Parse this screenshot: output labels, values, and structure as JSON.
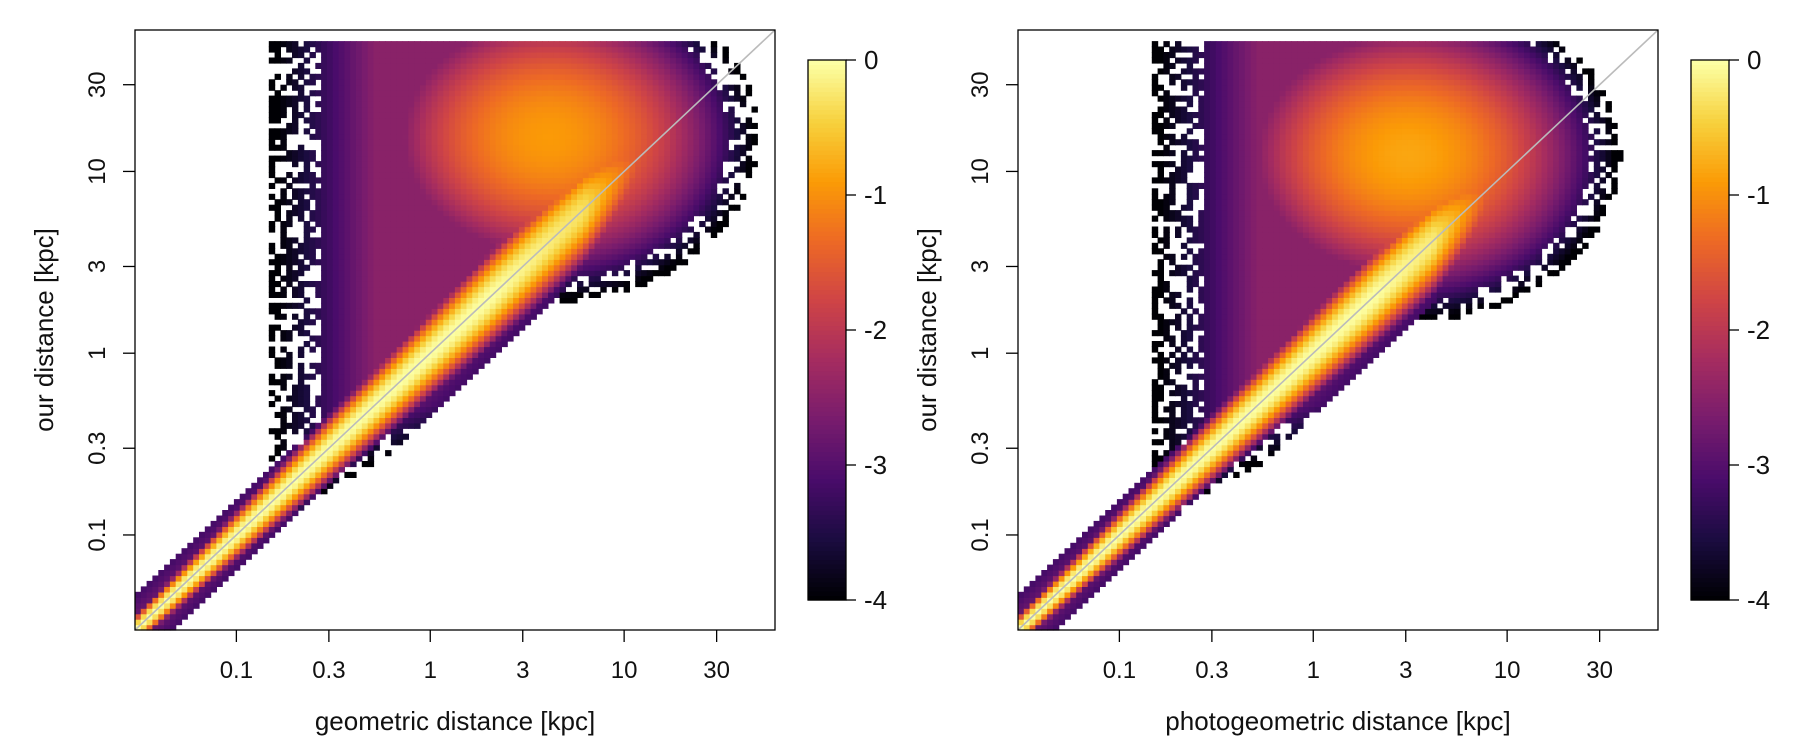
{
  "chart_data": [
    {
      "type": "heatmap",
      "xlabel": "geometric distance [kpc]",
      "ylabel": "our distance [kpc]",
      "xscale": "log10",
      "yscale": "log10",
      "xlim": [
        0.03,
        60
      ],
      "ylim": [
        0.03,
        60
      ],
      "x_ticks": [
        0.1,
        0.3,
        1,
        3,
        10,
        30
      ],
      "x_tick_labels": [
        "0.1",
        "0.3",
        "1",
        "3",
        "10",
        "30"
      ],
      "y_ticks": [
        0.1,
        0.3,
        1,
        3,
        10,
        30
      ],
      "y_tick_labels": [
        "0.1",
        "0.3",
        "1",
        "3",
        "10",
        "30"
      ],
      "reference_line": "y = x",
      "colorbar": {
        "scale": "log10 relative density",
        "range": [
          -4,
          0
        ],
        "ticks": [
          0,
          -1,
          -2,
          -3,
          -4
        ],
        "tick_labels": [
          "0",
          "-1",
          "-2",
          "-3",
          "-4"
        ],
        "colors": [
          "#000004",
          "#1b0c41",
          "#4a0c6b",
          "#781c6d",
          "#a52c60",
          "#cf4446",
          "#ed6925",
          "#fb9b06",
          "#f7d13d",
          "#fcffa4"
        ]
      },
      "density_components": [
        {
          "name": "diagonal ridge",
          "x_range": [
            0.03,
            6
          ],
          "y_equals_x": true,
          "peak_log_density": 0
        },
        {
          "name": "upper plume",
          "x_center": 4,
          "y_center": 15,
          "peak_log_density": -0.9
        },
        {
          "name": "background envelope",
          "x_range": [
            0.2,
            10
          ],
          "y_range": [
            0.2,
            50
          ],
          "peak_log_density": -2.5
        }
      ]
    },
    {
      "type": "heatmap",
      "xlabel": "photogeometric distance [kpc]",
      "ylabel": "our distance [kpc]",
      "xscale": "log10",
      "yscale": "log10",
      "xlim": [
        0.03,
        60
      ],
      "ylim": [
        0.03,
        60
      ],
      "x_ticks": [
        0.1,
        0.3,
        1,
        3,
        10,
        30
      ],
      "x_tick_labels": [
        "0.1",
        "0.3",
        "1",
        "3",
        "10",
        "30"
      ],
      "y_ticks": [
        0.1,
        0.3,
        1,
        3,
        10,
        30
      ],
      "y_tick_labels": [
        "0.1",
        "0.3",
        "1",
        "3",
        "10",
        "30"
      ],
      "reference_line": "y = x",
      "colorbar": {
        "scale": "log10 relative density",
        "range": [
          -4,
          0
        ],
        "ticks": [
          0,
          -1,
          -2,
          -3,
          -4
        ],
        "tick_labels": [
          "0",
          "-1",
          "-2",
          "-3",
          "-4"
        ],
        "colors": [
          "#000004",
          "#1b0c41",
          "#4a0c6b",
          "#781c6d",
          "#a52c60",
          "#cf4446",
          "#ed6925",
          "#fb9b06",
          "#f7d13d",
          "#fcffa4"
        ]
      },
      "density_components": [
        {
          "name": "diagonal ridge",
          "x_range": [
            0.03,
            4
          ],
          "y_equals_x": true,
          "peak_log_density": 0
        },
        {
          "name": "upper plume",
          "x_center": 3,
          "y_center": 12,
          "peak_log_density": -0.8
        },
        {
          "name": "background envelope",
          "x_range": [
            0.2,
            10
          ],
          "y_range": [
            0.2,
            50
          ],
          "peak_log_density": -2.5
        }
      ]
    }
  ]
}
